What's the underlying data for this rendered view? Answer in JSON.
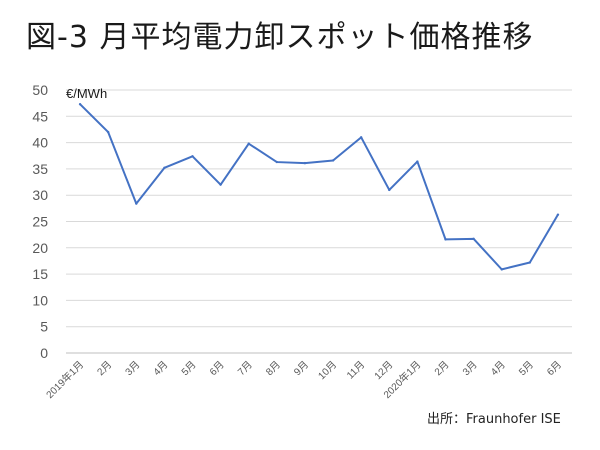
{
  "title": "図-3 月平均電力卸スポット価格推移",
  "source": "出所：Fraunhofer ISE",
  "chart_data": {
    "type": "line",
    "title": "図-3 月平均電力卸スポット価格推移",
    "ylabel": "€/MWh",
    "xlabel": "",
    "ylim": [
      0,
      50
    ],
    "yticks": [
      0,
      5,
      10,
      15,
      20,
      25,
      30,
      35,
      40,
      45,
      50
    ],
    "grid": true,
    "categories": [
      "2019年1月",
      "2月",
      "3月",
      "4月",
      "5月",
      "6月",
      "7月",
      "8月",
      "9月",
      "10月",
      "11月",
      "12月",
      "2020年1月",
      "2月",
      "3月",
      "4月",
      "5月",
      "6月"
    ],
    "series": [
      {
        "values": [
          47.3,
          42.0,
          28.4,
          35.2,
          37.4,
          32.0,
          39.8,
          36.3,
          36.1,
          36.6,
          41.0,
          31.0,
          36.4,
          21.6,
          21.7,
          15.9,
          17.2,
          26.3
        ]
      }
    ],
    "line_color": "#4472C4"
  }
}
